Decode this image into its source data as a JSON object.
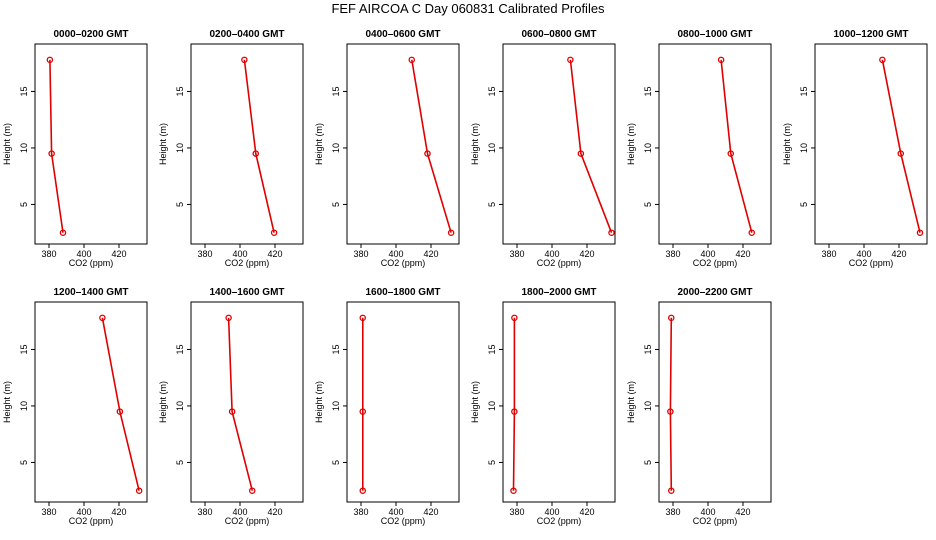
{
  "figure": {
    "title": "FEF AIRCOA C  Day 060831  Calibrated Profiles"
  },
  "chart_data": [
    {
      "type": "line",
      "title": "0000–0200 GMT",
      "xlabel": "CO2 (ppm)",
      "ylabel": "Height (m)",
      "xlim": [
        372,
        436
      ],
      "ylim": [
        1.5,
        19.2
      ],
      "xticks": [
        380,
        400,
        420
      ],
      "yticks": [
        5,
        10,
        15
      ],
      "series": [
        {
          "x": [
            380.5,
            381.5,
            388.0
          ],
          "y": [
            17.8,
            9.5,
            2.5
          ],
          "color": "#e00000"
        }
      ]
    },
    {
      "type": "line",
      "title": "0200–0400 GMT",
      "xlabel": "CO2 (ppm)",
      "ylabel": "Height (m)",
      "xlim": [
        372,
        436
      ],
      "ylim": [
        1.5,
        19.2
      ],
      "xticks": [
        380,
        400,
        420
      ],
      "yticks": [
        5,
        10,
        15
      ],
      "series": [
        {
          "x": [
            402.5,
            409.0,
            419.5
          ],
          "y": [
            17.8,
            9.5,
            2.5
          ],
          "color": "#e00000"
        }
      ]
    },
    {
      "type": "line",
      "title": "0400–0600 GMT",
      "xlabel": "CO2 (ppm)",
      "ylabel": "Height (m)",
      "xlim": [
        372,
        436
      ],
      "ylim": [
        1.5,
        19.2
      ],
      "xticks": [
        380,
        400,
        420
      ],
      "yticks": [
        5,
        10,
        15
      ],
      "series": [
        {
          "x": [
            409.0,
            418.0,
            431.5
          ],
          "y": [
            17.8,
            9.5,
            2.5
          ],
          "color": "#e00000"
        }
      ]
    },
    {
      "type": "line",
      "title": "0600–0800 GMT",
      "xlabel": "CO2 (ppm)",
      "ylabel": "Height (m)",
      "xlim": [
        372,
        436
      ],
      "ylim": [
        1.5,
        19.2
      ],
      "xticks": [
        380,
        400,
        420
      ],
      "yticks": [
        5,
        10,
        15
      ],
      "series": [
        {
          "x": [
            410.5,
            416.5,
            434.0
          ],
          "y": [
            17.8,
            9.5,
            2.5
          ],
          "color": "#e00000"
        }
      ]
    },
    {
      "type": "line",
      "title": "0800–1000 GMT",
      "xlabel": "CO2 (ppm)",
      "ylabel": "Height (m)",
      "xlim": [
        372,
        436
      ],
      "ylim": [
        1.5,
        19.2
      ],
      "xticks": [
        380,
        400,
        420
      ],
      "yticks": [
        5,
        10,
        15
      ],
      "series": [
        {
          "x": [
            407.5,
            413.0,
            425.0
          ],
          "y": [
            17.8,
            9.5,
            2.5
          ],
          "color": "#e00000"
        }
      ]
    },
    {
      "type": "line",
      "title": "1000–1200 GMT",
      "xlabel": "CO2 (ppm)",
      "ylabel": "Height (m)",
      "xlim": [
        372,
        436
      ],
      "ylim": [
        1.5,
        19.2
      ],
      "xticks": [
        380,
        400,
        420
      ],
      "yticks": [
        5,
        10,
        15
      ],
      "series": [
        {
          "x": [
            410.5,
            421.0,
            432.0
          ],
          "y": [
            17.8,
            9.5,
            2.5
          ],
          "color": "#e00000"
        }
      ]
    },
    {
      "type": "line",
      "title": "1200–1400 GMT",
      "xlabel": "CO2 (ppm)",
      "ylabel": "Height (m)",
      "xlim": [
        372,
        436
      ],
      "ylim": [
        1.5,
        19.2
      ],
      "xticks": [
        380,
        400,
        420
      ],
      "yticks": [
        5,
        10,
        15
      ],
      "series": [
        {
          "x": [
            410.5,
            420.5,
            431.5
          ],
          "y": [
            17.8,
            9.5,
            2.5
          ],
          "color": "#e00000"
        }
      ]
    },
    {
      "type": "line",
      "title": "1400–1600 GMT",
      "xlabel": "CO2 (ppm)",
      "ylabel": "Height (m)",
      "xlim": [
        372,
        436
      ],
      "ylim": [
        1.5,
        19.2
      ],
      "xticks": [
        380,
        400,
        420
      ],
      "yticks": [
        5,
        10,
        15
      ],
      "series": [
        {
          "x": [
            393.5,
            395.5,
            407.0
          ],
          "y": [
            17.8,
            9.5,
            2.5
          ],
          "color": "#e00000"
        }
      ]
    },
    {
      "type": "line",
      "title": "1600–1800 GMT",
      "xlabel": "CO2 (ppm)",
      "ylabel": "Height (m)",
      "xlim": [
        372,
        436
      ],
      "ylim": [
        1.5,
        19.2
      ],
      "xticks": [
        380,
        400,
        420
      ],
      "yticks": [
        5,
        10,
        15
      ],
      "series": [
        {
          "x": [
            381.0,
            381.0,
            381.0
          ],
          "y": [
            17.8,
            9.5,
            2.5
          ],
          "color": "#e00000"
        }
      ]
    },
    {
      "type": "line",
      "title": "1800–2000 GMT",
      "xlabel": "CO2 (ppm)",
      "ylabel": "Height (m)",
      "xlim": [
        372,
        436
      ],
      "ylim": [
        1.5,
        19.2
      ],
      "xticks": [
        380,
        400,
        420
      ],
      "yticks": [
        5,
        10,
        15
      ],
      "series": [
        {
          "x": [
            378.5,
            378.5,
            378.0
          ],
          "y": [
            17.8,
            9.5,
            2.5
          ],
          "color": "#e00000"
        }
      ]
    },
    {
      "type": "line",
      "title": "2000–2200 GMT",
      "xlabel": "CO2 (ppm)",
      "ylabel": "Height (m)",
      "xlim": [
        372,
        436
      ],
      "ylim": [
        1.5,
        19.2
      ],
      "xticks": [
        380,
        400,
        420
      ],
      "yticks": [
        5,
        10,
        15
      ],
      "series": [
        {
          "x": [
            379.0,
            378.5,
            379.0
          ],
          "y": [
            17.8,
            9.5,
            2.5
          ],
          "color": "#e00000"
        }
      ]
    }
  ]
}
